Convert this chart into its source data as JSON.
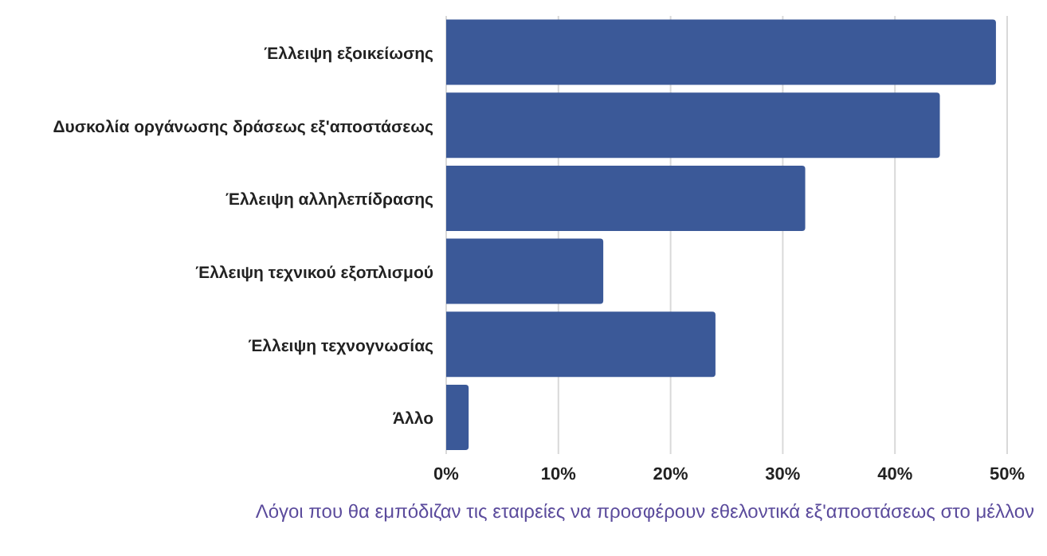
{
  "chart_data": {
    "type": "bar",
    "orientation": "horizontal",
    "categories": [
      "Έλλειψη εξοικείωσης",
      "Δυσκολία οργάνωσης δράσεως εξ'αποστάσεως",
      "Έλλειψη αλληλεπίδρασης",
      "Έλλειψη τεχνικού εξοπλισμού",
      "Έλλειψη τεχνογνωσίας",
      "Άλλο"
    ],
    "values": [
      49,
      44,
      32,
      14,
      24,
      2
    ],
    "color": "#3b5998",
    "xlim": [
      0,
      50
    ],
    "xticks": [
      {
        "value": 0,
        "label": "0%"
      },
      {
        "value": 10,
        "label": "10%"
      },
      {
        "value": 20,
        "label": "20%"
      },
      {
        "value": 30,
        "label": "30%"
      },
      {
        "value": 40,
        "label": "40%"
      },
      {
        "value": 50,
        "label": "50%"
      }
    ],
    "grid": "x",
    "legend": false,
    "annotations": [
      "Λόγοι που θα εμπόδιζαν τις εταιρείες να προσφέρουν εθελοντικά εξ'αποστάσεως στο μέλλον"
    ]
  }
}
